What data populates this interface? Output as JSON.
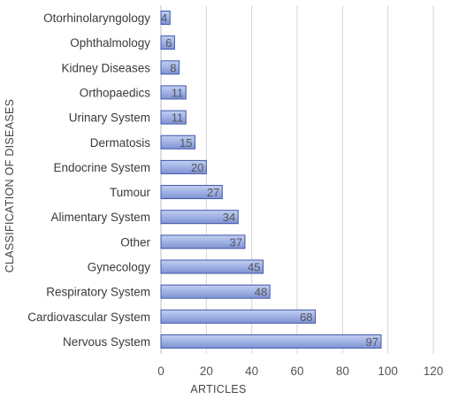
{
  "chart_data": {
    "type": "bar",
    "orientation": "horizontal",
    "title": "",
    "xlabel": "ARTICLES",
    "ylabel": "CLASSIFICATION  OF DISEASES",
    "xlim": [
      0,
      120
    ],
    "xticks": [
      0,
      20,
      40,
      60,
      80,
      100,
      120
    ],
    "grid": true,
    "categories": [
      "Otorhinolaryngology",
      "Ophthalmology",
      "Kidney Diseases",
      "Orthopaedics",
      "Urinary System",
      "Dermatosis",
      "Endocrine System",
      "Tumour",
      "Alimentary System",
      "Other",
      "Gynecology",
      "Respiratory System",
      "Cardiovascular System",
      "Nervous System"
    ],
    "values": [
      4,
      6,
      8,
      11,
      11,
      15,
      20,
      27,
      34,
      37,
      45,
      48,
      68,
      97
    ],
    "bar_color": "#9aaee2",
    "bar_edge_color": "#3f56ad"
  }
}
